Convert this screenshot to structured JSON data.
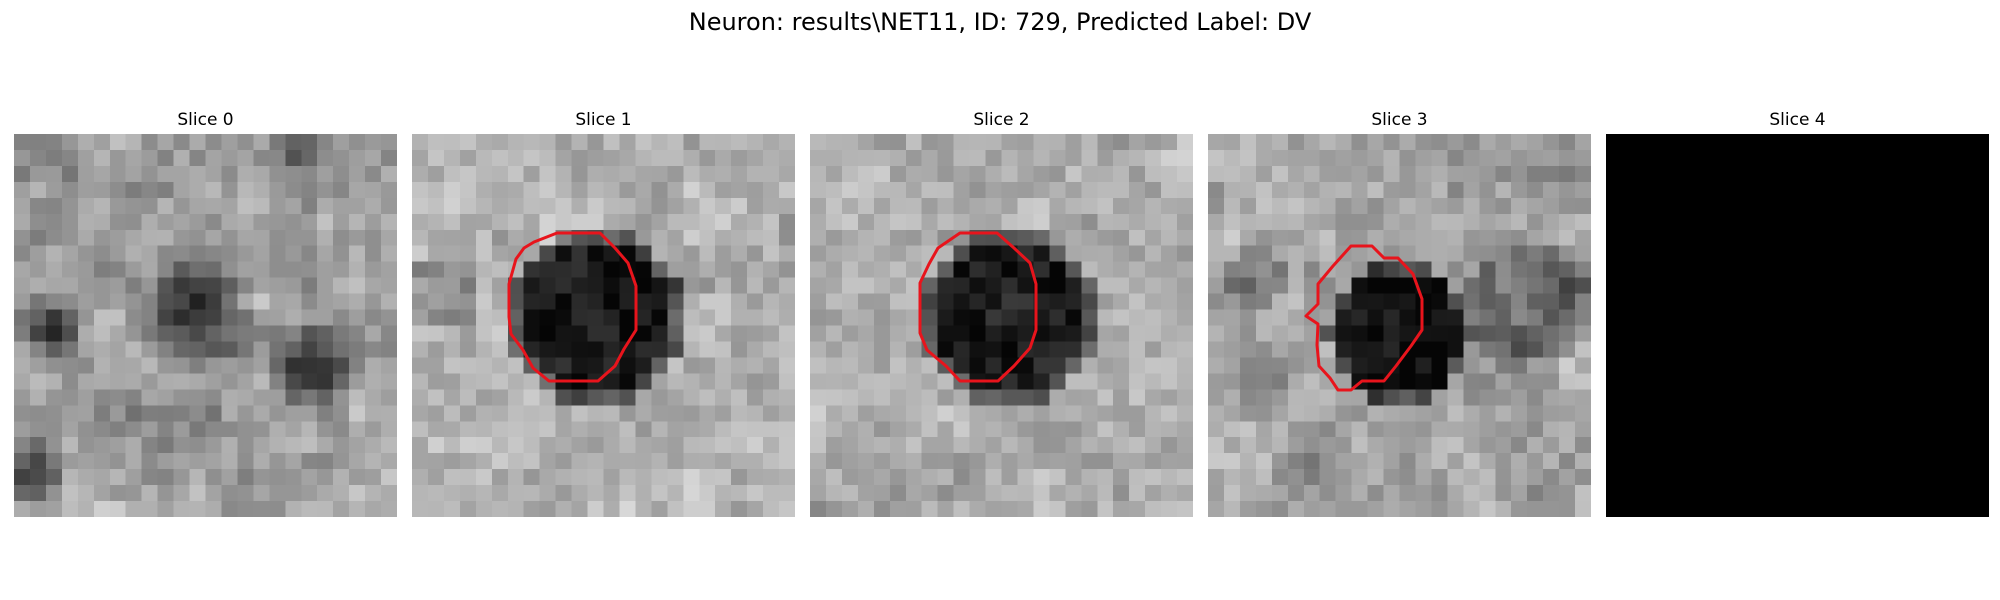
{
  "figure": {
    "title": "Neuron: results\\NET11, ID: 729, Predicted Label: DV"
  },
  "panels": [
    {
      "title": "Slice 0",
      "has_outline": false,
      "blank": false
    },
    {
      "title": "Slice 1",
      "has_outline": true,
      "blank": false
    },
    {
      "title": "Slice 2",
      "has_outline": true,
      "blank": false
    },
    {
      "title": "Slice 3",
      "has_outline": true,
      "blank": false
    },
    {
      "title": "Slice 4",
      "has_outline": false,
      "blank": true
    }
  ],
  "colors": {
    "outline": "#e8141c",
    "background": "#ffffff",
    "blank_panel": "#000000"
  },
  "image_grid": "24 x 24 grayscale pixels per slice"
}
